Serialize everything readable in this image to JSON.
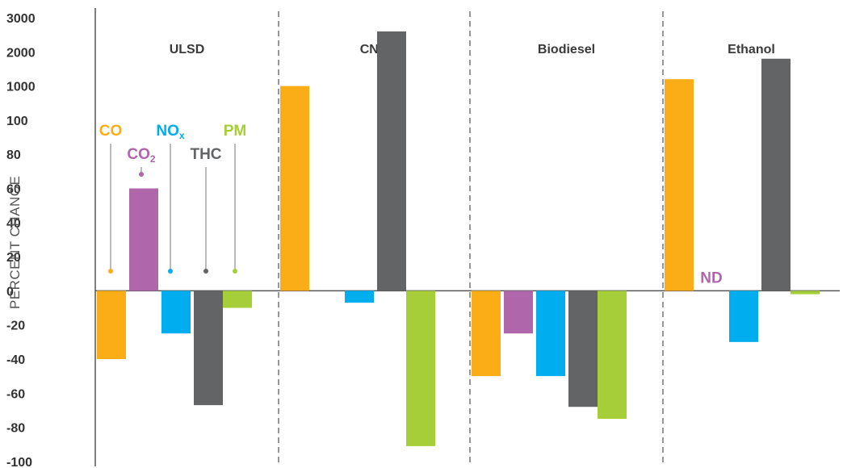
{
  "chart_data": {
    "type": "bar",
    "ylabel": "PERCENT CHANGE",
    "yticks": [
      "3000",
      "2000",
      "1000",
      "100",
      "80",
      "60",
      "40",
      "20",
      "0",
      "-20",
      "-40",
      "-60",
      "-80",
      "-100"
    ],
    "yscale": "piecewise: linear from -100 to 100, then 1000, 2000, 3000 at equal tick spacing",
    "categories": [
      "ULSD",
      "CNG",
      "Biodiesel",
      "Ethanol"
    ],
    "series": [
      {
        "name": "CO",
        "label_main": "CO",
        "label_sub": "",
        "color": "#FBAD18",
        "values": [
          -40,
          1000,
          -50,
          1200
        ]
      },
      {
        "name": "CO2",
        "label_main": "CO",
        "label_sub": "2",
        "color": "#B066AA",
        "values": [
          60,
          null,
          -25,
          null
        ]
      },
      {
        "name": "NOx",
        "label_main": "NO",
        "label_sub": "x",
        "color": "#00AEEF",
        "values": [
          -25,
          -7,
          -50,
          -30
        ]
      },
      {
        "name": "THC",
        "label_main": "THC",
        "label_sub": "",
        "color": "#636466",
        "values": [
          -67,
          2600,
          -68,
          1800
        ]
      },
      {
        "name": "PM",
        "label_main": "PM",
        "label_sub": "",
        "color": "#A6CE39",
        "values": [
          -10,
          -91,
          -75,
          -2
        ]
      }
    ],
    "annotations": [
      {
        "text": "ND",
        "category": "Ethanol",
        "series": "CO2",
        "color": "#B066AA"
      }
    ],
    "grid": false,
    "legend": "leader-line labels inside ULSD group"
  }
}
